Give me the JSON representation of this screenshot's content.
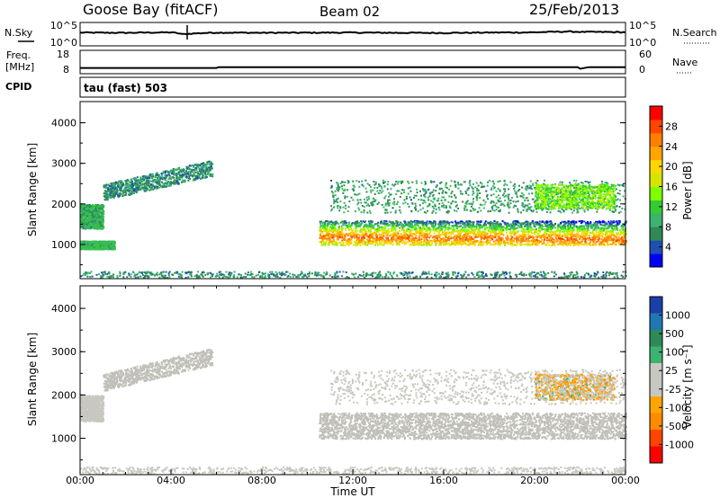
{
  "header": {
    "station": "Goose Bay (fitACF)",
    "beam": "Beam 02",
    "date": "25/Feb/2013"
  },
  "top_panels": {
    "nsky_label": "N.Sky",
    "nsky_ticks": [
      "10^5",
      "10^0"
    ],
    "nsearch_label": "N.Search",
    "nsearch_ticks": [
      "10^5",
      "10^0"
    ],
    "freq_label_1": "Freq.",
    "freq_label_2": "[MHz]",
    "freq_ticks": [
      "18",
      "8"
    ],
    "nave_label": "Nave",
    "nave_ticks": [
      "60",
      "0"
    ],
    "cpid_label": "CPID",
    "cpid_text": "tau (fast) 503"
  },
  "colors": {
    "power_scale": [
      "#0000ff",
      "#1f4fb2",
      "#2e8b57",
      "#3cb371",
      "#32cd32",
      "#7fff00",
      "#d4e600",
      "#ffd700",
      "#ffa500",
      "#ff7f00",
      "#ff4500",
      "#ff0000"
    ],
    "velocity_scale": [
      "#ff0000",
      "#ff4500",
      "#ff8c00",
      "#ffa500",
      "#c8c8c0",
      "#c8c8c0",
      "#3cb371",
      "#2e8b57",
      "#1f78b4",
      "#1a3fa8"
    ],
    "ground_scatter": "#c0c0b8"
  },
  "chart_data": [
    {
      "type": "line",
      "title": "N.Sky / N.Search",
      "x_range": [
        "00:00",
        "24:00"
      ],
      "yscale": "log",
      "ylim": [
        1,
        100000
      ],
      "series": [
        {
          "name": "N.Sky",
          "x_hours": [
            0,
            2,
            4,
            4.5,
            6,
            8,
            10,
            12,
            14,
            16,
            18,
            20,
            21.5,
            22,
            24
          ],
          "values": [
            800,
            700,
            900,
            300,
            800,
            700,
            750,
            800,
            700,
            650,
            800,
            900,
            1500,
            1200,
            1000
          ]
        }
      ]
    },
    {
      "type": "line",
      "title": "Freq. [MHz] / Nave",
      "ylim": [
        8,
        18
      ],
      "series": [
        {
          "name": "Freq.",
          "x_hours": [
            0,
            6,
            6.1,
            12,
            18,
            21.9,
            22,
            22.4,
            24
          ],
          "values": [
            10.0,
            10.0,
            10.4,
            10.4,
            10.4,
            10.4,
            9.6,
            10.4,
            10.4
          ]
        }
      ]
    },
    {
      "type": "heatmap",
      "title": "Power",
      "xlabel": "",
      "ylabel": "Slant Range [km]",
      "x_range_hours": [
        0,
        24
      ],
      "ylim": [
        180,
        4500
      ],
      "yticks": [
        "1000",
        "2000",
        "3000",
        "4000"
      ],
      "colorbar_label": "Power [dB]",
      "colorbar_ticks": [
        "4",
        "8",
        "12",
        "16",
        "20",
        "24",
        "28"
      ],
      "colorbar_range": [
        0,
        30
      ],
      "regions": [
        {
          "name": "early-band",
          "t": [
            0.0,
            1.0
          ],
          "r": [
            1400,
            2000
          ],
          "level": 8
        },
        {
          "name": "early-rise",
          "t": [
            1.0,
            5.8
          ],
          "r": [
            2300,
            3000
          ],
          "level": 6
        },
        {
          "name": "low-early",
          "t": [
            0.0,
            1.5
          ],
          "r": [
            900,
            1100
          ],
          "level": 9
        },
        {
          "name": "main-band",
          "t": [
            10.5,
            24.0
          ],
          "r": [
            1000,
            1600
          ],
          "level": 20
        },
        {
          "name": "upper-band",
          "t": [
            11.0,
            24.0
          ],
          "r": [
            1800,
            2600
          ],
          "level": 7
        },
        {
          "name": "late-cluster",
          "t": [
            20.0,
            23.5
          ],
          "r": [
            1900,
            2500
          ],
          "level": 13
        },
        {
          "name": "near-range",
          "t": [
            0.0,
            24.0
          ],
          "r": [
            200,
            350
          ],
          "level": 6
        }
      ]
    },
    {
      "type": "heatmap",
      "title": "Velocity",
      "xlabel": "Time UT",
      "ylabel": "Slant Range [km]",
      "x_range_hours": [
        0,
        24
      ],
      "xticks": [
        "00:00",
        "04:00",
        "08:00",
        "12:00",
        "16:00",
        "20:00",
        "00:00"
      ],
      "ylim": [
        180,
        4500
      ],
      "yticks": [
        "1000",
        "2000",
        "3000",
        "4000"
      ],
      "colorbar_label": "Velocity [m s⁻¹]",
      "colorbar_ticks": [
        "1000",
        "500",
        "100",
        "25",
        "-25",
        "-100",
        "-500",
        "-1000"
      ],
      "regions": [
        {
          "name": "early-band",
          "t": [
            0.0,
            1.0
          ],
          "r": [
            1400,
            2000
          ],
          "velocity": 0
        },
        {
          "name": "early-rise",
          "t": [
            1.0,
            5.8
          ],
          "r": [
            2300,
            3000
          ],
          "velocity": 0
        },
        {
          "name": "main-band",
          "t": [
            10.5,
            24.0
          ],
          "r": [
            1000,
            1600
          ],
          "velocity": 0
        },
        {
          "name": "upper-band",
          "t": [
            11.0,
            24.0
          ],
          "r": [
            1800,
            2600
          ],
          "velocity": -60
        },
        {
          "name": "late-cluster",
          "t": [
            20.0,
            23.5
          ],
          "r": [
            1900,
            2500
          ],
          "velocity": -150
        },
        {
          "name": "near-range",
          "t": [
            0.0,
            24.0
          ],
          "r": [
            200,
            350
          ],
          "velocity": 0
        }
      ]
    }
  ]
}
